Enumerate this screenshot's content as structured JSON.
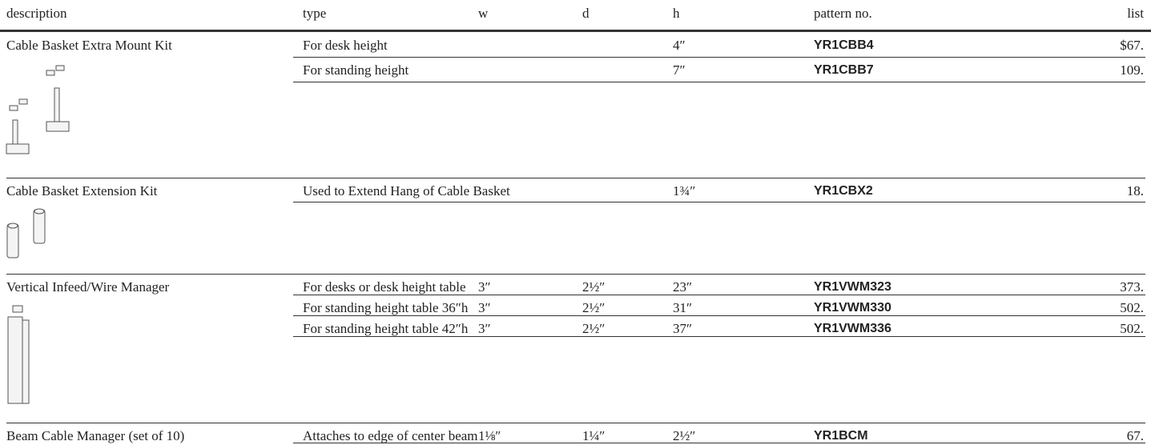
{
  "header": [
    "description",
    "type",
    "w",
    "d",
    "h",
    "pattern no.",
    "list"
  ],
  "groups": [
    {
      "description": "Cable Basket Extra Mount Kit",
      "rows": [
        {
          "type": "For desk height",
          "h": "4″",
          "pattern": "YR1CBB4",
          "list": "$67."
        },
        {
          "type": "For standing height",
          "h": "7″",
          "pattern": "YR1CBB7",
          "list": "109."
        }
      ]
    },
    {
      "description": "Cable Basket Extension Kit",
      "rows": [
        {
          "type": "Used to Extend Hang of Cable Basket",
          "h": "1¾″",
          "pattern": "YR1CBX2",
          "list": "18."
        }
      ]
    },
    {
      "description": "Vertical Infeed/Wire Manager",
      "rows": [
        {
          "type": "For desks or desk height table",
          "w": "3″",
          "d": "2½″",
          "h": "23″",
          "pattern": "YR1VWM323",
          "list": "373."
        },
        {
          "type": "For standing height table 36″h",
          "w": "3″",
          "d": "2½″",
          "h": "31″",
          "pattern": "YR1VWM330",
          "list": "502."
        },
        {
          "type": "For standing height table 42″h",
          "w": "3″",
          "d": "2½″",
          "h": "37″",
          "pattern": "YR1VWM336",
          "list": "502."
        }
      ]
    },
    {
      "description": "Beam Cable Manager (set of 10)",
      "rows": [
        {
          "type": "Attaches to edge of center beam",
          "w": "1⅛″",
          "d": "1¼″",
          "h": "2½″",
          "pattern": "YR1BCM",
          "list": "67."
        }
      ]
    }
  ]
}
